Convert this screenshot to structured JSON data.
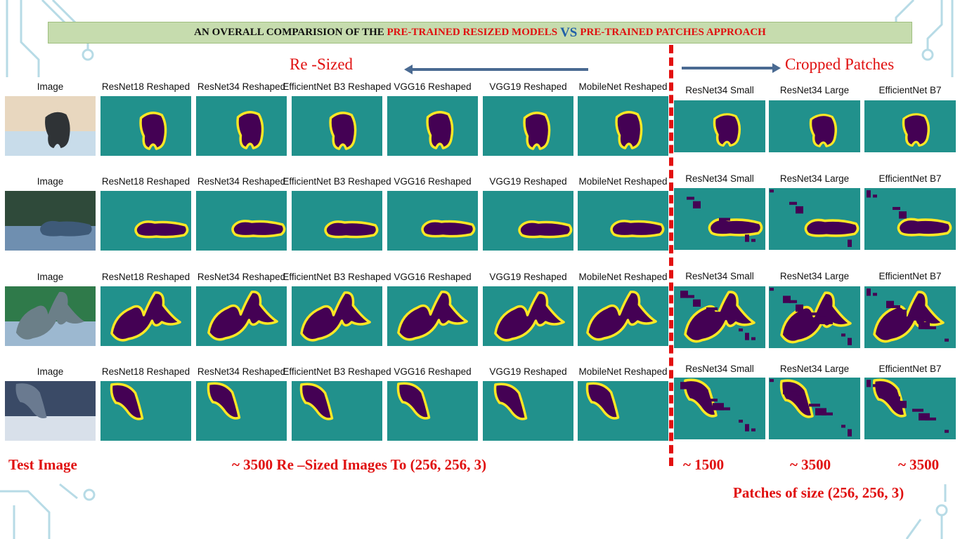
{
  "title": {
    "part1": "AN OVERALL COMPARISION OF THE",
    "part2": "PRE-TRAINED RESIZED MODELS",
    "vs": "VS",
    "part3": "PRE-TRAINED PATCHES APPROACH"
  },
  "sections": {
    "resized": "Re -Sized",
    "cropped": "Cropped Patches"
  },
  "resized_columns": [
    "Image",
    "ResNet18 Reshaped",
    "ResNet34 Reshaped",
    "EfficientNet B3 Reshaped",
    "VGG16 Reshaped",
    "VGG19 Reshaped",
    "MobileNet Reshaped"
  ],
  "patch_columns": [
    "ResNet34 Small",
    "ResNet34 Large",
    "EfficientNet B7"
  ],
  "rows": [
    {
      "subject": "dogs on beach"
    },
    {
      "subject": "running dog"
    },
    {
      "subject": "two kittens"
    },
    {
      "subject": "group of cats"
    }
  ],
  "bottom": {
    "test_image": "Test Image",
    "resized_count": "~ 3500 Re –Sized Images To (256, 256, 3)",
    "count_small": "~ 1500",
    "count_large": "~ 3500",
    "count_b7": "~ 3500",
    "patch_size": "Patches of size (256, 256, 3)"
  },
  "colors": {
    "background_mask": "#21918c",
    "object_mask": "#440154",
    "boundary_mask": "#fde725",
    "accent_red": "#e01010",
    "arrow_blue": "#4a6a92",
    "title_bar": "#c6dcae"
  }
}
